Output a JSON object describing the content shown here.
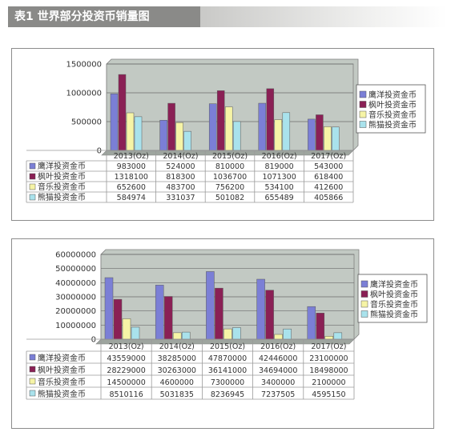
{
  "header": {
    "title": "表1   世界部分投资币销量图"
  },
  "colors": {
    "series": [
      "#7b7fd6",
      "#8a2055",
      "#f6f4a6",
      "#a9e2ec"
    ],
    "plot_bg": "#c2c9c3"
  },
  "chart_data": [
    {
      "type": "bar",
      "categories": [
        "2013(Oz)",
        "2014(Oz)",
        "2015(Oz)",
        "2016(Oz)",
        "2017(Oz)"
      ],
      "ylim": [
        0,
        1500000
      ],
      "yticks": [
        "1500000",
        "1000000",
        "500000",
        "0"
      ],
      "legend_position": "right",
      "grid": true,
      "series": [
        {
          "name": "鹰洋投资金币",
          "values": [
            983000,
            524000,
            810000,
            819000,
            543000
          ],
          "labels": [
            "983000",
            "524000",
            "810000",
            "819000",
            "543000"
          ]
        },
        {
          "name": "枫叶投资金币",
          "values": [
            1318100,
            818300,
            1036700,
            1071300,
            618400
          ],
          "labels": [
            "1318100",
            "818300",
            "1036700",
            "1071300",
            "618400"
          ]
        },
        {
          "name": "音乐投资金币",
          "values": [
            652600,
            483700,
            756200,
            534100,
            412600
          ],
          "labels": [
            "652600",
            "483700",
            "756200",
            "534100",
            "412600"
          ]
        },
        {
          "name": "熊猫投资金币",
          "values": [
            584974,
            331037,
            501082,
            655489,
            405866
          ],
          "labels": [
            "584974",
            "331037",
            "501082",
            "655489",
            "405866"
          ]
        }
      ]
    },
    {
      "type": "bar",
      "categories": [
        "2013(Oz)",
        "2014(Oz)",
        "2015(Oz)",
        "2016(Oz)",
        "2017(Oz)"
      ],
      "ylim": [
        0,
        60000000
      ],
      "yticks": [
        "60000000",
        "50000000",
        "40000000",
        "30000000",
        "20000000",
        "10000000",
        "0"
      ],
      "legend_position": "right",
      "grid": true,
      "series": [
        {
          "name": "鹰洋投资金币",
          "values": [
            43559000,
            38285000,
            47870000,
            42446000,
            23100000
          ],
          "labels": [
            "43559000",
            "38285000",
            "47870000",
            "42446000",
            "23100000"
          ]
        },
        {
          "name": "枫叶投资金币",
          "values": [
            28229000,
            30263000,
            36141000,
            34694000,
            18498000
          ],
          "labels": [
            "28229000",
            "30263000",
            "36141000",
            "34694000",
            "18498000"
          ]
        },
        {
          "name": "音乐投资金币",
          "values": [
            14500000,
            4600000,
            7300000,
            3400000,
            2100000
          ],
          "labels": [
            "14500000",
            "4600000",
            "7300000",
            "3400000",
            "2100000"
          ]
        },
        {
          "name": "熊猫投资金币",
          "values": [
            8510116,
            5031835,
            8236945,
            7237505,
            4595150
          ],
          "labels": [
            "8510116",
            "5031835",
            "8236945",
            "7237505",
            "4595150"
          ]
        }
      ]
    }
  ]
}
